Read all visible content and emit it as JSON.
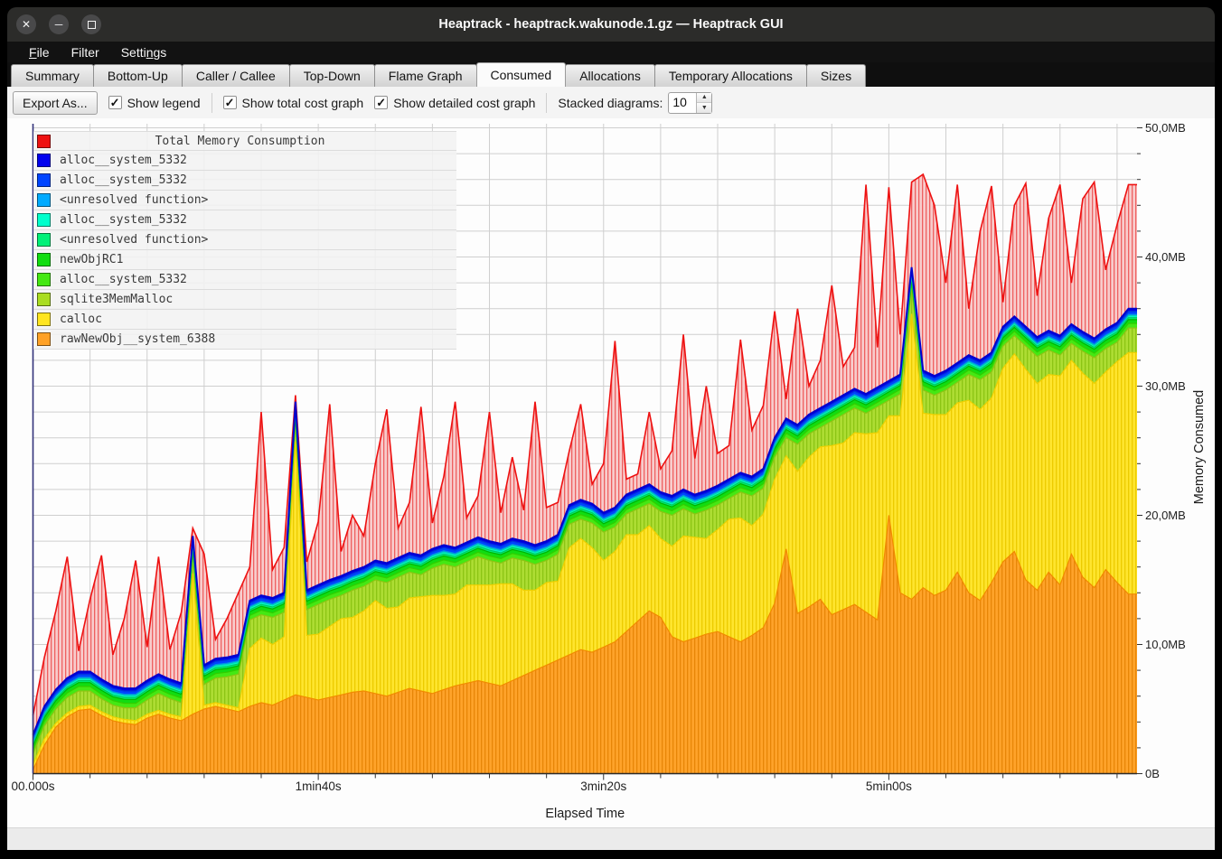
{
  "window": {
    "title": "Heaptrack - heaptrack.wakunode.1.gz — Heaptrack GUI",
    "controls": [
      "close",
      "minimize",
      "maximize"
    ]
  },
  "menu": {
    "items": [
      {
        "pre": "",
        "accel": "F",
        "post": "ile"
      },
      {
        "pre": "Filter",
        "accel": "",
        "post": ""
      },
      {
        "pre": "Setti",
        "accel": "n",
        "post": "gs"
      }
    ]
  },
  "tabs": {
    "active": "Consumed",
    "items": [
      "Summary",
      "Bottom-Up",
      "Caller / Callee",
      "Top-Down",
      "Flame Graph",
      "Consumed",
      "Allocations",
      "Temporary Allocations",
      "Sizes"
    ]
  },
  "toolbar": {
    "export_label": "Export As...",
    "checkboxes": [
      {
        "label": "Show legend",
        "checked": true
      },
      {
        "label": "Show total cost graph",
        "checked": true
      },
      {
        "label": "Show detailed cost graph",
        "checked": true
      }
    ],
    "stacked_label": "Stacked diagrams:",
    "stacked_value": "10"
  },
  "legend": {
    "title": "Total Memory Consumption",
    "title_color": "#ee1111",
    "items": [
      {
        "label": "alloc__system_5332",
        "color": "#0000ee"
      },
      {
        "label": "alloc__system_5332",
        "color": "#0044ff"
      },
      {
        "label": "<unresolved function>",
        "color": "#00aaff"
      },
      {
        "label": "alloc__system_5332",
        "color": "#00ffcc"
      },
      {
        "label": "<unresolved function>",
        "color": "#00f078"
      },
      {
        "label": "newObjRC1",
        "color": "#11dd11"
      },
      {
        "label": "alloc__system_5332",
        "color": "#44e813"
      },
      {
        "label": "sqlite3MemMalloc",
        "color": "#aadd22"
      },
      {
        "label": "calloc",
        "color": "#ffe520"
      },
      {
        "label": "rawNewObj__system_6388",
        "color": "#ffa126"
      }
    ]
  },
  "chart": {
    "x_title": "Elapsed Time",
    "y_title": "Memory Consumed",
    "x_ticks": [
      {
        "t": 0,
        "label": "00.000s"
      },
      {
        "t": 100,
        "label": "1min40s"
      },
      {
        "t": 200,
        "label": "3min20s"
      },
      {
        "t": 300,
        "label": "5min00s"
      }
    ],
    "y_ticks": [
      {
        "mb": 0,
        "label": "0B"
      },
      {
        "mb": 10,
        "label": "10,0MB"
      },
      {
        "mb": 20,
        "label": "20,0MB"
      },
      {
        "mb": 30,
        "label": "30,0MB"
      },
      {
        "mb": 40,
        "label": "40,0MB"
      },
      {
        "mb": 50,
        "label": "50,0MB"
      }
    ]
  },
  "chart_data": {
    "type": "area",
    "x_unit": "seconds",
    "y_unit": "MB",
    "x_start": 0,
    "x_step": 4,
    "x_count": 97,
    "x_max": 387,
    "ylim": [
      0,
      50.3
    ],
    "grid": {
      "x_step_s": 20,
      "y_step_mb": 2
    },
    "total": {
      "name": "Total Memory Consumption",
      "color": "#ee1111",
      "values": [
        4.5,
        9.0,
        12.6,
        16.8,
        9.5,
        13.5,
        16.9,
        9.2,
        12.0,
        16.5,
        9.8,
        16.8,
        9.6,
        12.5,
        19.0,
        17.0,
        10.4,
        12.0,
        14.0,
        16.0,
        28.0,
        15.8,
        17.5,
        29.3,
        16.4,
        19.5,
        28.6,
        17.2,
        20.0,
        18.4,
        24.0,
        28.2,
        19.0,
        21.0,
        28.4,
        19.4,
        23.0,
        28.8,
        19.8,
        21.5,
        28.0,
        20.2,
        24.5,
        20.4,
        28.8,
        20.6,
        21.0,
        25.0,
        28.6,
        22.4,
        24.0,
        33.5,
        22.8,
        23.2,
        28.0,
        23.6,
        25.0,
        34.0,
        24.4,
        30.0,
        24.8,
        25.4,
        33.6,
        26.6,
        28.5,
        35.8,
        29.0,
        36.0,
        30.0,
        32.0,
        37.8,
        31.5,
        33.0,
        45.6,
        33.0,
        45.4,
        34.0,
        45.8,
        46.4,
        44.0,
        38.0,
        45.6,
        36.0,
        42.0,
        45.5,
        36.5,
        44.0,
        45.7,
        37.0,
        43.0,
        45.6,
        38.0,
        44.5,
        45.8,
        39.0,
        42.5,
        45.6
      ]
    },
    "series": [
      {
        "name": "rawNewObj__system_6388",
        "color": "#ffa126",
        "stroke": "#f18a00",
        "values": [
          0.3,
          2.2,
          3.6,
          4.4,
          4.9,
          5.0,
          4.5,
          4.1,
          3.9,
          3.8,
          4.3,
          4.6,
          4.3,
          4.1,
          4.6,
          5.0,
          5.2,
          5.0,
          4.8,
          5.2,
          5.5,
          5.3,
          5.7,
          6.1,
          5.9,
          5.7,
          5.9,
          6.1,
          6.3,
          6.4,
          6.2,
          6.0,
          6.3,
          6.6,
          6.4,
          6.2,
          6.5,
          6.8,
          7.0,
          7.2,
          7.0,
          6.8,
          7.2,
          7.6,
          8.0,
          8.4,
          8.8,
          9.2,
          9.6,
          9.4,
          9.8,
          10.2,
          11.0,
          11.8,
          12.6,
          12.1,
          10.6,
          10.2,
          10.5,
          10.8,
          11.0,
          10.6,
          10.2,
          10.7,
          11.3,
          13.2,
          17.4,
          12.4,
          12.9,
          13.5,
          12.3,
          12.7,
          13.1,
          12.5,
          11.9,
          20.0,
          14.0,
          13.5,
          14.4,
          13.8,
          14.2,
          15.6,
          14.0,
          13.4,
          14.8,
          16.4,
          17.2,
          15.0,
          14.2,
          15.6,
          14.6,
          17.0,
          15.2,
          14.4,
          15.8,
          14.8,
          13.9
        ]
      },
      {
        "name": "calloc",
        "color": "#ffe520",
        "stroke": "#edd000",
        "values": [
          0.4,
          0.5,
          0.3,
          0.3,
          0.3,
          0.3,
          0.3,
          0.3,
          0.3,
          0.3,
          0.3,
          0.3,
          0.3,
          0.3,
          10.9,
          0.3,
          0.3,
          0.3,
          0.3,
          4.5,
          5.0,
          4.7,
          4.9,
          19.6,
          4.8,
          5.1,
          5.5,
          5.9,
          5.8,
          6.2,
          7.2,
          6.8,
          6.6,
          7.0,
          7.3,
          7.6,
          7.3,
          7.1,
          7.6,
          7.4,
          7.6,
          7.9,
          7.5,
          6.6,
          6.2,
          6.4,
          6.1,
          8.3,
          8.6,
          8.1,
          6.7,
          7.0,
          7.5,
          6.7,
          6.6,
          6.1,
          7.0,
          8.2,
          7.8,
          7.4,
          7.9,
          9.1,
          9.6,
          8.5,
          8.8,
          9.6,
          7.2,
          11.0,
          11.6,
          11.8,
          13.1,
          12.9,
          13.3,
          13.8,
          14.5,
          7.7,
          13.7,
          22.1,
          13.5,
          14.0,
          13.6,
          13.1,
          14.9,
          14.8,
          14.3,
          15.0,
          15.3,
          16.3,
          16.0,
          15.3,
          16.2,
          15.0,
          15.8,
          15.8,
          15.3,
          17.1,
          18.7
        ]
      },
      {
        "name": "sqlite3MemMalloc",
        "color": "#aadd22",
        "stroke": "#8cc414",
        "values": [
          0.8,
          1.0,
          1.1,
          1.2,
          1.2,
          1.1,
          1.0,
          0.9,
          0.9,
          1.0,
          1.1,
          1.3,
          1.2,
          1.1,
          1.4,
          1.6,
          1.9,
          2.2,
          2.6,
          2.2,
          1.8,
          2.1,
          1.9,
          1.6,
          2.0,
          2.3,
          2.1,
          1.8,
          2.1,
          1.9,
          1.6,
          2.0,
          2.3,
          2.0,
          1.7,
          2.1,
          2.4,
          2.1,
          1.8,
          2.2,
          1.9,
          1.6,
          2.0,
          2.3,
          2.0,
          1.7,
          2.1,
          1.8,
          1.5,
          1.9,
          2.2,
          1.9,
          1.6,
          2.0,
          1.7,
          2.1,
          2.4,
          2.1,
          1.8,
          2.2,
          1.9,
          1.6,
          2.0,
          2.3,
          2.0,
          1.7,
          1.4,
          2.1,
          1.8,
          1.5,
          1.9,
          2.2,
          1.9,
          1.6,
          2.0,
          1.2,
          1.7,
          2.1,
          1.8,
          1.5,
          1.9,
          1.6,
          2.0,
          2.3,
          2.0,
          1.7,
          1.4,
          1.8,
          2.1,
          1.9,
          1.6,
          1.3,
          1.7,
          2.0,
          1.8,
          1.5,
          1.9
        ]
      },
      {
        "name": "alloc__system_5332",
        "color": "#44e813",
        "stroke": "#33cc00",
        "const": 0.35
      },
      {
        "name": "newObjRC1",
        "color": "#11dd11",
        "stroke": "#00b400",
        "const": 0.3
      },
      {
        "name": "<unresolved function>",
        "color": "#00f078",
        "stroke": "#00c860",
        "const": 0.15
      },
      {
        "name": "alloc__system_5332",
        "color": "#00ffcc",
        "stroke": "#00d8b0",
        "const": 0.15
      },
      {
        "name": "<unresolved function>",
        "color": "#00aaff",
        "stroke": "#0090e0",
        "const": 0.1
      },
      {
        "name": "alloc__system_5332",
        "color": "#0044ff",
        "stroke": "#0033dd",
        "const": 0.25
      },
      {
        "name": "alloc__system_5332",
        "color": "#0000ee",
        "stroke": "#0000cc",
        "const": 0.2
      }
    ]
  }
}
